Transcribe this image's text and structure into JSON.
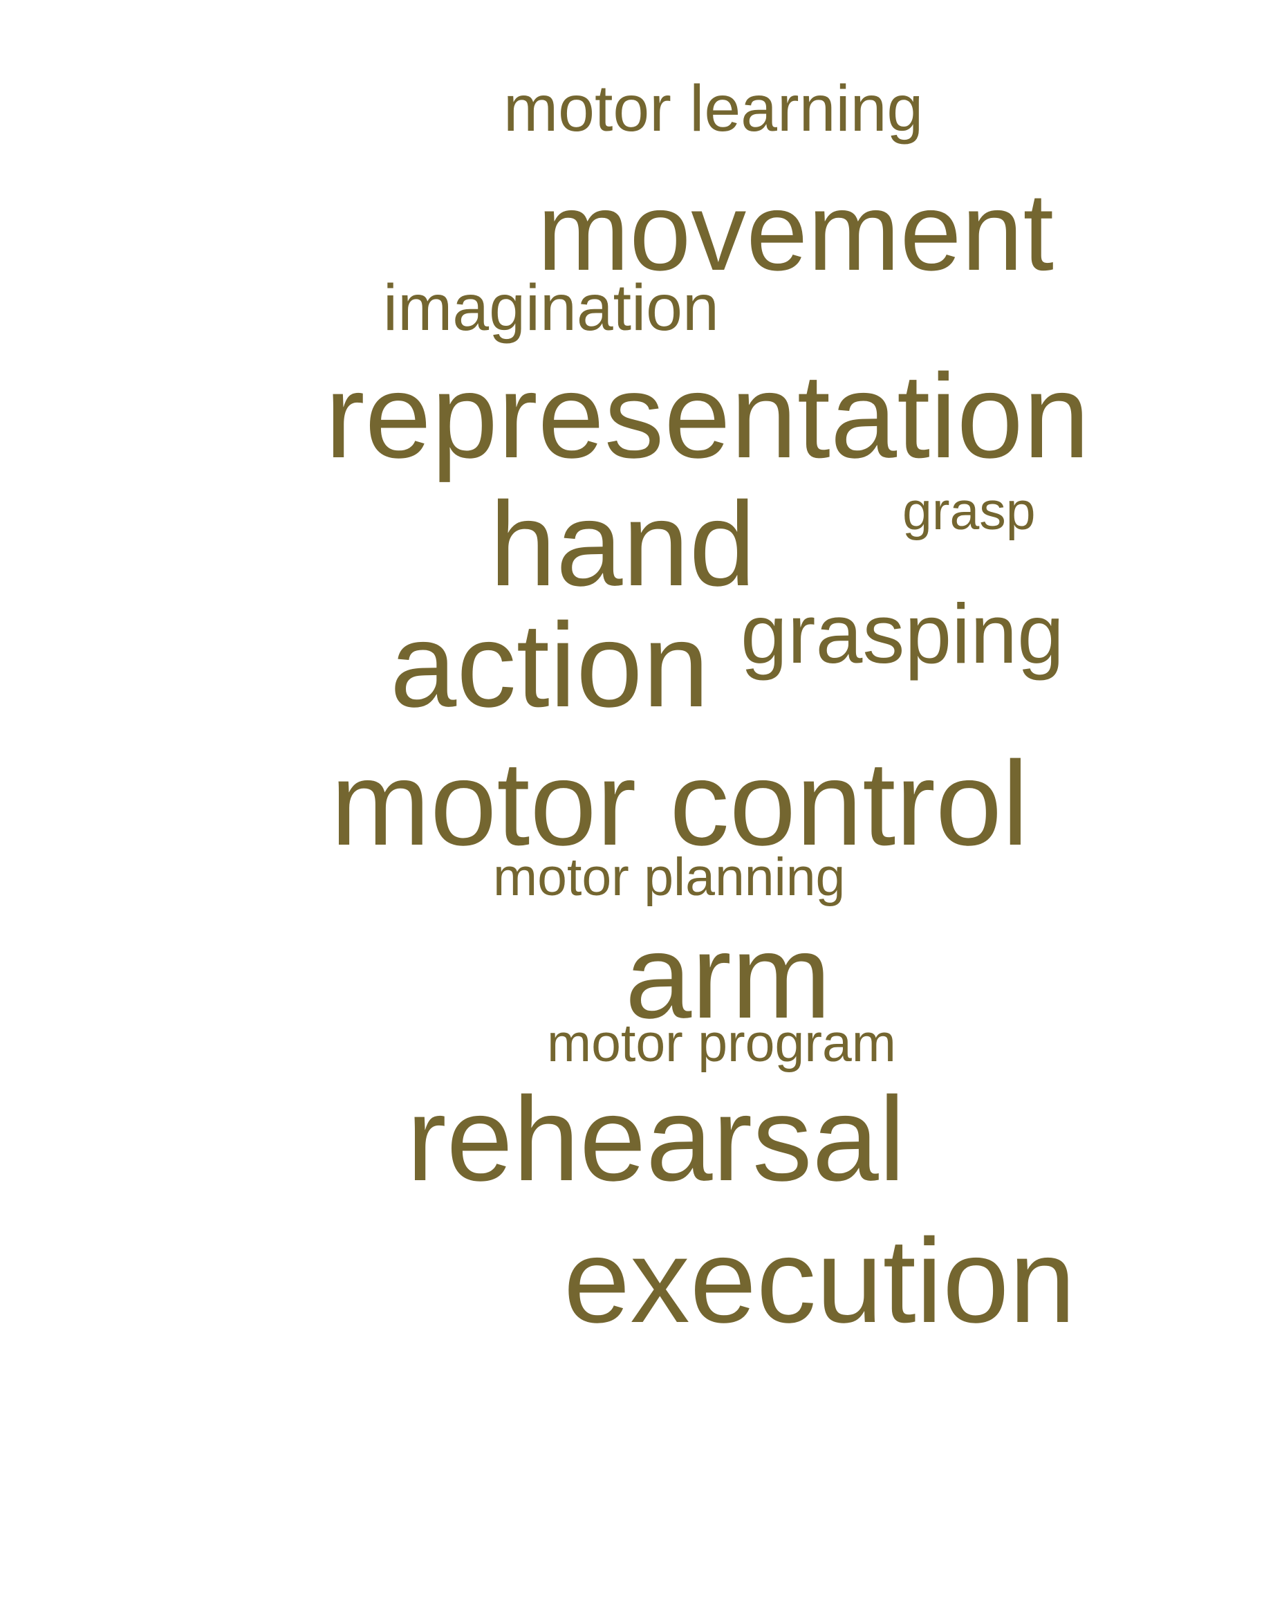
{
  "colors": {
    "word": "#746630",
    "background": "#ffffff"
  },
  "words": {
    "motor_learning": "motor learning",
    "movement": "movement",
    "imagination": "imagination",
    "representation": "representation",
    "grasp": "grasp",
    "hand": "hand",
    "action": "action",
    "grasping": "grasping",
    "motor_control": "motor control",
    "motor_planning": "motor planning",
    "arm": "arm",
    "motor_program": "motor program",
    "rehearsal": "rehearsal",
    "execution": "execution"
  }
}
